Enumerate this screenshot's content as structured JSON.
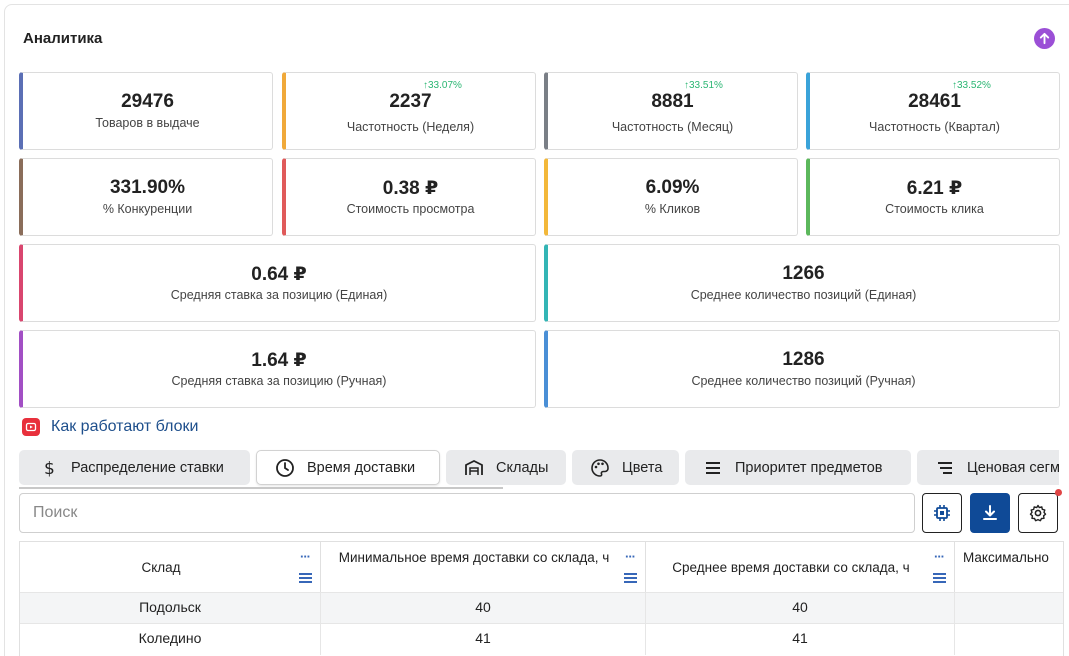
{
  "header": {
    "title": "Аналитика"
  },
  "colors": {
    "accent_blue": "#0f4a97",
    "trend_green": "#2bb673",
    "purple": "#9b4fd6"
  },
  "cards": [
    {
      "value": "29476",
      "label": "Товаров в выдаче",
      "trend": "",
      "color": "#5b6fb5"
    },
    {
      "value": "2237",
      "label": "Частотность (Неделя)",
      "trend": "↑33.07%",
      "color": "#f0a93a"
    },
    {
      "value": "8881",
      "label": "Частотность (Месяц)",
      "trend": "↑33.51%",
      "color": "#7a7f86"
    },
    {
      "value": "28461",
      "label": "Частотность (Квартал)",
      "trend": "↑33.52%",
      "color": "#3aa3d9"
    },
    {
      "value": "331.90%",
      "label": "% Конкуренции",
      "trend": "",
      "color": "#8a6d5a"
    },
    {
      "value": "0.38 ₽",
      "label": "Стоимость просмотра",
      "trend": "",
      "color": "#e05a5a"
    },
    {
      "value": "6.09%",
      "label": "% Кликов",
      "trend": "",
      "color": "#f3b83a"
    },
    {
      "value": "6.21 ₽",
      "label": "Стоимость клика",
      "trend": "",
      "color": "#5cb85c"
    },
    {
      "value": "0.64 ₽",
      "label": "Средняя ставка за позицию (Единая)",
      "trend": "",
      "color": "#d9466f"
    },
    {
      "value": "1266",
      "label": "Среднее количество позиций (Единая)",
      "trend": "",
      "color": "#33b5b5"
    },
    {
      "value": "1.64 ₽",
      "label": "Средняя ставка за позицию (Ручная)",
      "trend": "",
      "color": "#a24fc4"
    },
    {
      "value": "1286",
      "label": "Среднее количество позиций (Ручная)",
      "trend": "",
      "color": "#4a8fd6"
    }
  ],
  "howto": {
    "label": "Как работают блоки",
    "icon": "youtube-icon"
  },
  "tabs": [
    {
      "label": "Распределение ставки",
      "icon": "dollar-icon"
    },
    {
      "label": "Время доставки",
      "icon": "clock-icon"
    },
    {
      "label": "Склады",
      "icon": "warehouse-icon"
    },
    {
      "label": "Цвета",
      "icon": "palette-icon"
    },
    {
      "label": "Приоритет предметов",
      "icon": "list-icon"
    },
    {
      "label": "Ценовая сегм",
      "icon": "sort-icon"
    }
  ],
  "search": {
    "placeholder": "Поиск"
  },
  "toolbar": {
    "icons": [
      "chip-icon",
      "download-icon",
      "gear-icon"
    ]
  },
  "table": {
    "columns": [
      "Склад",
      "Минимальное время доставки со склада, ч",
      "Среднее время доставки со склада, ч",
      "Максимально"
    ],
    "rows": [
      [
        "Подольск",
        "40",
        "40",
        ""
      ],
      [
        "Коледино",
        "41",
        "41",
        ""
      ]
    ]
  }
}
